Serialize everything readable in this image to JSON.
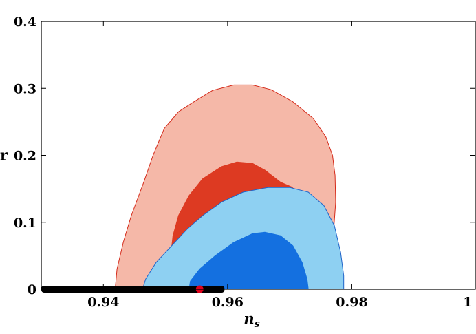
{
  "chart_data": {
    "type": "area",
    "title": "",
    "xlabel": "n",
    "xlabel_sub": "s",
    "ylabel": "r",
    "xlim": [
      0.93,
      1.0
    ],
    "ylim": [
      0.0,
      0.4
    ],
    "grid": false,
    "legend": "none",
    "x_ticks": [
      {
        "value": 0.94,
        "label": "0.94"
      },
      {
        "value": 0.96,
        "label": "0.96"
      },
      {
        "value": 0.98,
        "label": "0.98"
      },
      {
        "value": 1.0,
        "label": "1"
      }
    ],
    "y_ticks": [
      {
        "value": 0.0,
        "label": "0"
      },
      {
        "value": 0.1,
        "label": "0.1"
      },
      {
        "value": 0.2,
        "label": "0.2"
      },
      {
        "value": 0.3,
        "label": "0.3"
      },
      {
        "value": 0.4,
        "label": "0.4"
      }
    ],
    "contours": [
      {
        "id": "red-outer",
        "fill": "#f5b8a8",
        "stroke": "#d42a1a",
        "points": [
          [
            0.9419,
            0.0
          ],
          [
            0.9422,
            0.03
          ],
          [
            0.9432,
            0.07
          ],
          [
            0.9445,
            0.11
          ],
          [
            0.9465,
            0.16
          ],
          [
            0.948,
            0.2
          ],
          [
            0.9498,
            0.24
          ],
          [
            0.9521,
            0.265
          ],
          [
            0.9546,
            0.28
          ],
          [
            0.9576,
            0.297
          ],
          [
            0.961,
            0.305
          ],
          [
            0.964,
            0.305
          ],
          [
            0.967,
            0.298
          ],
          [
            0.9705,
            0.28
          ],
          [
            0.9738,
            0.255
          ],
          [
            0.9758,
            0.228
          ],
          [
            0.9769,
            0.2
          ],
          [
            0.9773,
            0.17
          ],
          [
            0.9774,
            0.13
          ],
          [
            0.9771,
            0.09
          ],
          [
            0.9765,
            0.05
          ],
          [
            0.9761,
            0.0
          ]
        ]
      },
      {
        "id": "red-inner",
        "fill": "#dd3a22",
        "stroke": "#dd3a22",
        "points": [
          [
            0.9509,
            0.055
          ],
          [
            0.9512,
            0.08
          ],
          [
            0.9521,
            0.11
          ],
          [
            0.9538,
            0.14
          ],
          [
            0.956,
            0.165
          ],
          [
            0.959,
            0.183
          ],
          [
            0.9615,
            0.19
          ],
          [
            0.964,
            0.188
          ],
          [
            0.966,
            0.178
          ],
          [
            0.9685,
            0.16
          ],
          [
            0.9705,
            0.152
          ],
          [
            0.966,
            0.148
          ],
          [
            0.961,
            0.135
          ],
          [
            0.957,
            0.11
          ],
          [
            0.954,
            0.085
          ],
          [
            0.9518,
            0.06
          ]
        ]
      },
      {
        "id": "blue-outer",
        "fill": "#8ed0f2",
        "stroke": "#1f63c8",
        "points": [
          [
            0.9463,
            0.0
          ],
          [
            0.9468,
            0.015
          ],
          [
            0.9485,
            0.04
          ],
          [
            0.951,
            0.065
          ],
          [
            0.9535,
            0.09
          ],
          [
            0.956,
            0.11
          ],
          [
            0.959,
            0.13
          ],
          [
            0.9625,
            0.145
          ],
          [
            0.9665,
            0.152
          ],
          [
            0.97,
            0.152
          ],
          [
            0.973,
            0.145
          ],
          [
            0.9755,
            0.125
          ],
          [
            0.9772,
            0.095
          ],
          [
            0.9782,
            0.055
          ],
          [
            0.9787,
            0.02
          ],
          [
            0.9787,
            0.0
          ]
        ]
      },
      {
        "id": "blue-inner",
        "fill": "#1470e0",
        "stroke": "#1470e0",
        "points": [
          [
            0.9538,
            0.0
          ],
          [
            0.954,
            0.012
          ],
          [
            0.9555,
            0.03
          ],
          [
            0.958,
            0.05
          ],
          [
            0.961,
            0.07
          ],
          [
            0.964,
            0.083
          ],
          [
            0.966,
            0.085
          ],
          [
            0.9685,
            0.08
          ],
          [
            0.9705,
            0.065
          ],
          [
            0.972,
            0.04
          ],
          [
            0.9728,
            0.015
          ],
          [
            0.973,
            0.0
          ]
        ]
      }
    ],
    "bar": {
      "color": "#000000",
      "x_start": 0.93,
      "x_end": 0.9595,
      "y": 0.0
    },
    "point": {
      "color": "#e0001a",
      "x": 0.9555,
      "y": 0.0
    }
  }
}
